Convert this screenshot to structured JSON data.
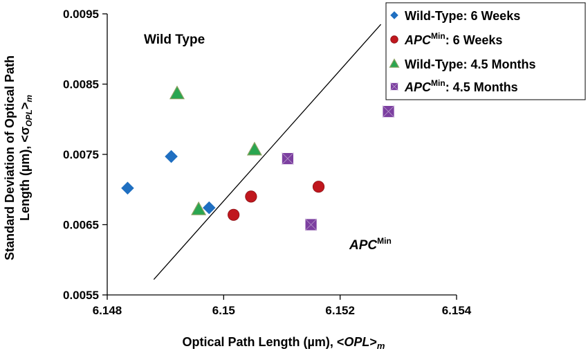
{
  "chart_data": {
    "type": "scatter",
    "xlabel_prefix": "Optical Path Length (µm), <",
    "xlabel_var": "OPL",
    "xlabel_close": ">",
    "xlabel_sub": "m",
    "ylabel_line1": "Standard Deviation of Optical Path",
    "ylabel_line2_prefix": "Length (µm), <σ",
    "ylabel_line2_sub1": "OPL",
    "ylabel_line2_close": ">",
    "ylabel_line2_sub2": "m",
    "xlim": [
      6.148,
      6.154
    ],
    "ylim": [
      0.0055,
      0.0095
    ],
    "xticks": [
      6.148,
      6.15,
      6.152,
      6.154
    ],
    "xtick_labels": [
      "6.148",
      "6.15",
      "6.152",
      "6.154"
    ],
    "yticks": [
      0.0055,
      0.0065,
      0.0075,
      0.0085,
      0.0095
    ],
    "ytick_labels": [
      "0.0055",
      "0.0065",
      "0.0075",
      "0.0085",
      "0.0095"
    ],
    "grid": false,
    "legend_position": "top-right",
    "annotations": {
      "upper_left": "Wild Type",
      "lower_right_main": "APC",
      "lower_right_sup": "Min"
    },
    "divider_line": {
      "x": [
        6.1488,
        6.1527
      ],
      "y": [
        0.00572,
        0.00935
      ]
    },
    "series": [
      {
        "legend_main": "Wild-Type: 6 Weeks",
        "marker": "diamond",
        "color": "#1F6FC1",
        "points": [
          [
            6.14835,
            0.00702
          ],
          [
            6.1491,
            0.00747
          ],
          [
            6.14975,
            0.00674
          ]
        ]
      },
      {
        "legend_main": "APC",
        "legend_sup": "Min",
        "legend_rest": ": 6 Weeks",
        "marker": "circle",
        "color": "#C0171E",
        "points": [
          [
            6.15017,
            0.00664
          ],
          [
            6.15047,
            0.0069
          ],
          [
            6.15163,
            0.00704
          ]
        ]
      },
      {
        "legend_main": "Wild-Type: 4.5 Months",
        "marker": "triangle",
        "color": "#2AA650",
        "points": [
          [
            6.1492,
            0.00837
          ],
          [
            6.14957,
            0.00672
          ],
          [
            6.15053,
            0.00757
          ]
        ]
      },
      {
        "legend_main": "APC",
        "legend_sup": "Min",
        "legend_rest": ": 4.5 Months",
        "marker": "square-x",
        "color": "#7C3FA0",
        "points": [
          [
            6.1511,
            0.00744
          ],
          [
            6.1515,
            0.0065
          ],
          [
            6.15283,
            0.00811
          ]
        ]
      }
    ]
  }
}
